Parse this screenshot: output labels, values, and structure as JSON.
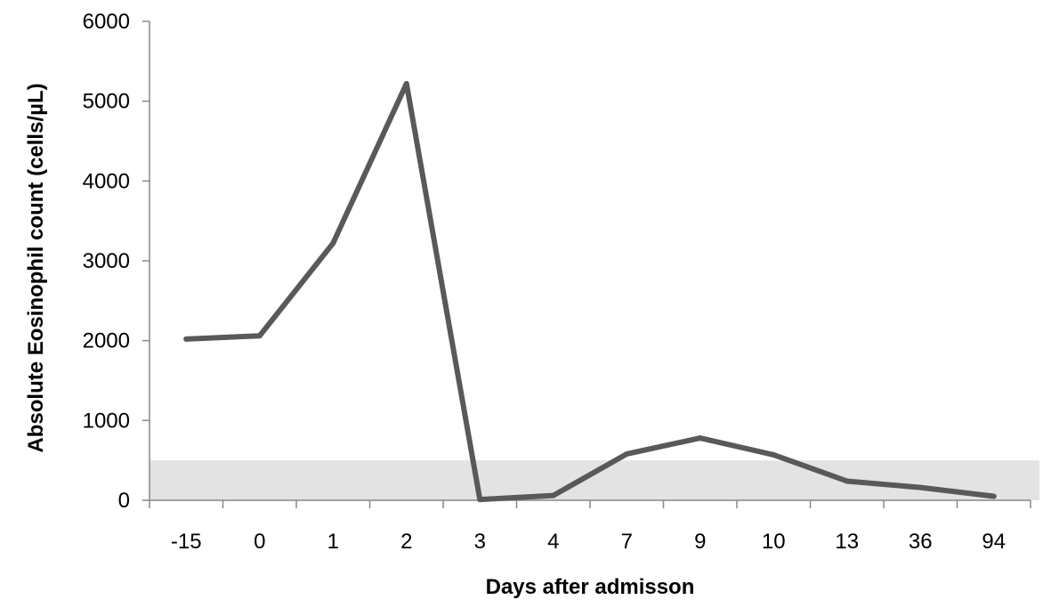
{
  "chart_data": {
    "type": "line",
    "title": "",
    "xlabel": "Days after admisson",
    "ylabel": "Absolute Eosinophil count (cells/µL)",
    "categories": [
      "-15",
      "0",
      "1",
      "2",
      "3",
      "4",
      "7",
      "9",
      "10",
      "13",
      "36",
      "94"
    ],
    "series": [
      {
        "values": [
          2020,
          2060,
          3220,
          5220,
          10,
          60,
          580,
          780,
          570,
          240,
          160,
          50
        ]
      }
    ],
    "ylim": [
      0,
      6000
    ],
    "yticks": [
      0,
      1000,
      2000,
      3000,
      4000,
      5000,
      6000
    ],
    "normal_range_band": [
      0,
      500
    ],
    "grid": false,
    "colors": {
      "line": "#595959",
      "band": "#e3e3e3",
      "axis": "#888888"
    }
  }
}
